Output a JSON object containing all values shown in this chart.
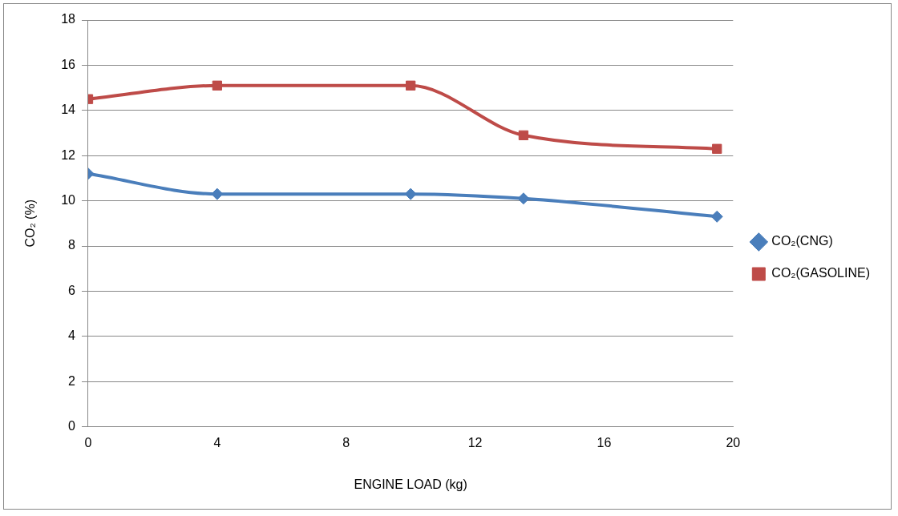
{
  "chart_data": {
    "type": "line",
    "xlabel": "ENGINE LOAD (kg)",
    "ylabel": "CO₂ (%)",
    "xlim": [
      0,
      20
    ],
    "xticks": [
      0,
      4,
      8,
      12,
      16,
      20
    ],
    "ylim": [
      0,
      18
    ],
    "yticks": [
      0,
      2,
      4,
      6,
      8,
      10,
      12,
      14,
      16,
      18
    ],
    "grid": "y",
    "legend": "right",
    "line_style": "solid",
    "series": [
      {
        "name": "CO₂(CNG)",
        "color": "#4a7ebb",
        "marker": "diamond",
        "x": [
          0,
          4,
          10,
          13.5,
          19.5
        ],
        "values": [
          11.2,
          10.3,
          10.3,
          10.1,
          9.3
        ]
      },
      {
        "name": "CO₂(GASOLINE)",
        "color": "#be4b48",
        "marker": "square",
        "x": [
          0,
          4,
          10,
          13.5,
          19.5
        ],
        "values": [
          14.5,
          15.1,
          15.1,
          12.9,
          12.3
        ]
      }
    ]
  }
}
